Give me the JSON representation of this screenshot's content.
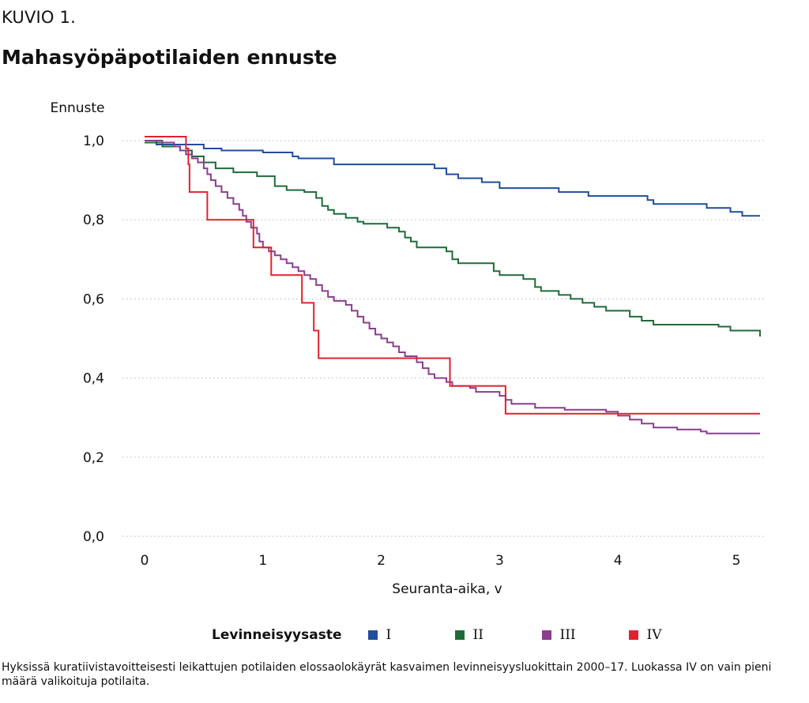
{
  "figure_label": "KUVIO 1.",
  "caption": "Hyksissä kuratiivistavoitteisesti leikattujen potilaiden elossaolokäyrät kasvaimen levinneisyysluokittain 2000–17. Luokassa IV on vain pieni määrä valikoituja potilaita.",
  "chart_data": {
    "type": "line",
    "step": true,
    "title": "Mahasyöpäpotilaiden ennuste",
    "ylabel": "Ennuste",
    "xlabel": "Seuranta-aika, v",
    "xlim": [
      0,
      5.2
    ],
    "ylim": [
      0,
      1.0
    ],
    "xticks": [
      0,
      1,
      2,
      3,
      4,
      5
    ],
    "xtick_labels": [
      "0",
      "1",
      "2",
      "3",
      "4",
      "5"
    ],
    "yticks": [
      0,
      0.2,
      0.4,
      0.6,
      0.8,
      1.0
    ],
    "ytick_labels": [
      "0,0",
      "0,2",
      "0,4",
      "0,6",
      "0,8",
      "1,0"
    ],
    "grid": "horizontal-dotted",
    "legend_title": "Levinneisyysaste",
    "legend_position": "bottom",
    "series": [
      {
        "name": "I",
        "color": "#1f4e9c",
        "points": [
          [
            0,
            1.0
          ],
          [
            0.1,
            0.99
          ],
          [
            0.5,
            0.98
          ],
          [
            0.65,
            0.975
          ],
          [
            1.0,
            0.97
          ],
          [
            1.25,
            0.96
          ],
          [
            1.3,
            0.955
          ],
          [
            1.6,
            0.94
          ],
          [
            2.0,
            0.94
          ],
          [
            2.45,
            0.93
          ],
          [
            2.55,
            0.915
          ],
          [
            2.65,
            0.905
          ],
          [
            2.85,
            0.895
          ],
          [
            3.0,
            0.88
          ],
          [
            3.5,
            0.87
          ],
          [
            3.75,
            0.86
          ],
          [
            4.25,
            0.85
          ],
          [
            4.3,
            0.84
          ],
          [
            4.75,
            0.83
          ],
          [
            4.95,
            0.82
          ],
          [
            5.05,
            0.81
          ],
          [
            5.2,
            0.81
          ]
        ]
      },
      {
        "name": "II",
        "color": "#1e6b3a",
        "points": [
          [
            0,
            0.995
          ],
          [
            0.15,
            0.985
          ],
          [
            0.3,
            0.975
          ],
          [
            0.4,
            0.96
          ],
          [
            0.5,
            0.945
          ],
          [
            0.6,
            0.93
          ],
          [
            0.75,
            0.92
          ],
          [
            0.95,
            0.91
          ],
          [
            1.1,
            0.885
          ],
          [
            1.2,
            0.875
          ],
          [
            1.35,
            0.87
          ],
          [
            1.45,
            0.855
          ],
          [
            1.5,
            0.835
          ],
          [
            1.55,
            0.825
          ],
          [
            1.6,
            0.815
          ],
          [
            1.7,
            0.805
          ],
          [
            1.8,
            0.795
          ],
          [
            1.85,
            0.79
          ],
          [
            2.05,
            0.78
          ],
          [
            2.15,
            0.77
          ],
          [
            2.2,
            0.755
          ],
          [
            2.25,
            0.745
          ],
          [
            2.3,
            0.73
          ],
          [
            2.55,
            0.72
          ],
          [
            2.6,
            0.7
          ],
          [
            2.65,
            0.69
          ],
          [
            2.95,
            0.67
          ],
          [
            3.0,
            0.66
          ],
          [
            3.2,
            0.65
          ],
          [
            3.3,
            0.63
          ],
          [
            3.35,
            0.62
          ],
          [
            3.5,
            0.61
          ],
          [
            3.6,
            0.6
          ],
          [
            3.7,
            0.59
          ],
          [
            3.8,
            0.58
          ],
          [
            3.9,
            0.57
          ],
          [
            4.1,
            0.555
          ],
          [
            4.2,
            0.545
          ],
          [
            4.3,
            0.535
          ],
          [
            4.85,
            0.53
          ],
          [
            4.95,
            0.52
          ],
          [
            5.2,
            0.505
          ]
        ]
      },
      {
        "name": "III",
        "color": "#8b3d8f",
        "points": [
          [
            0,
            1.0
          ],
          [
            0.15,
            0.995
          ],
          [
            0.25,
            0.985
          ],
          [
            0.3,
            0.975
          ],
          [
            0.35,
            0.965
          ],
          [
            0.4,
            0.955
          ],
          [
            0.45,
            0.945
          ],
          [
            0.5,
            0.93
          ],
          [
            0.53,
            0.915
          ],
          [
            0.56,
            0.9
          ],
          [
            0.6,
            0.885
          ],
          [
            0.65,
            0.87
          ],
          [
            0.7,
            0.855
          ],
          [
            0.75,
            0.84
          ],
          [
            0.8,
            0.825
          ],
          [
            0.83,
            0.81
          ],
          [
            0.86,
            0.795
          ],
          [
            0.9,
            0.78
          ],
          [
            0.95,
            0.765
          ],
          [
            0.97,
            0.745
          ],
          [
            1.0,
            0.73
          ],
          [
            1.05,
            0.72
          ],
          [
            1.1,
            0.71
          ],
          [
            1.15,
            0.7
          ],
          [
            1.2,
            0.69
          ],
          [
            1.25,
            0.68
          ],
          [
            1.3,
            0.67
          ],
          [
            1.35,
            0.66
          ],
          [
            1.4,
            0.65
          ],
          [
            1.45,
            0.635
          ],
          [
            1.5,
            0.62
          ],
          [
            1.55,
            0.605
          ],
          [
            1.6,
            0.595
          ],
          [
            1.7,
            0.585
          ],
          [
            1.75,
            0.57
          ],
          [
            1.8,
            0.555
          ],
          [
            1.85,
            0.54
          ],
          [
            1.9,
            0.525
          ],
          [
            1.95,
            0.51
          ],
          [
            2.0,
            0.5
          ],
          [
            2.05,
            0.49
          ],
          [
            2.1,
            0.48
          ],
          [
            2.15,
            0.465
          ],
          [
            2.2,
            0.455
          ],
          [
            2.3,
            0.44
          ],
          [
            2.35,
            0.425
          ],
          [
            2.4,
            0.41
          ],
          [
            2.45,
            0.4
          ],
          [
            2.55,
            0.39
          ],
          [
            2.6,
            0.38
          ],
          [
            2.75,
            0.375
          ],
          [
            2.8,
            0.365
          ],
          [
            3.0,
            0.355
          ],
          [
            3.05,
            0.345
          ],
          [
            3.1,
            0.335
          ],
          [
            3.3,
            0.325
          ],
          [
            3.55,
            0.32
          ],
          [
            3.9,
            0.315
          ],
          [
            4.0,
            0.305
          ],
          [
            4.1,
            0.295
          ],
          [
            4.2,
            0.285
          ],
          [
            4.3,
            0.275
          ],
          [
            4.5,
            0.27
          ],
          [
            4.7,
            0.265
          ],
          [
            4.75,
            0.26
          ],
          [
            5.2,
            0.26
          ]
        ]
      },
      {
        "name": "IV",
        "color": "#e3202f",
        "points": [
          [
            0,
            1.01
          ],
          [
            0.35,
            0.98
          ],
          [
            0.37,
            0.94
          ],
          [
            0.38,
            0.87
          ],
          [
            0.53,
            0.8
          ],
          [
            0.92,
            0.73
          ],
          [
            1.07,
            0.66
          ],
          [
            1.33,
            0.59
          ],
          [
            1.43,
            0.52
          ],
          [
            1.47,
            0.45
          ],
          [
            2.58,
            0.38
          ],
          [
            3.05,
            0.31
          ],
          [
            5.2,
            0.31
          ]
        ]
      }
    ]
  }
}
